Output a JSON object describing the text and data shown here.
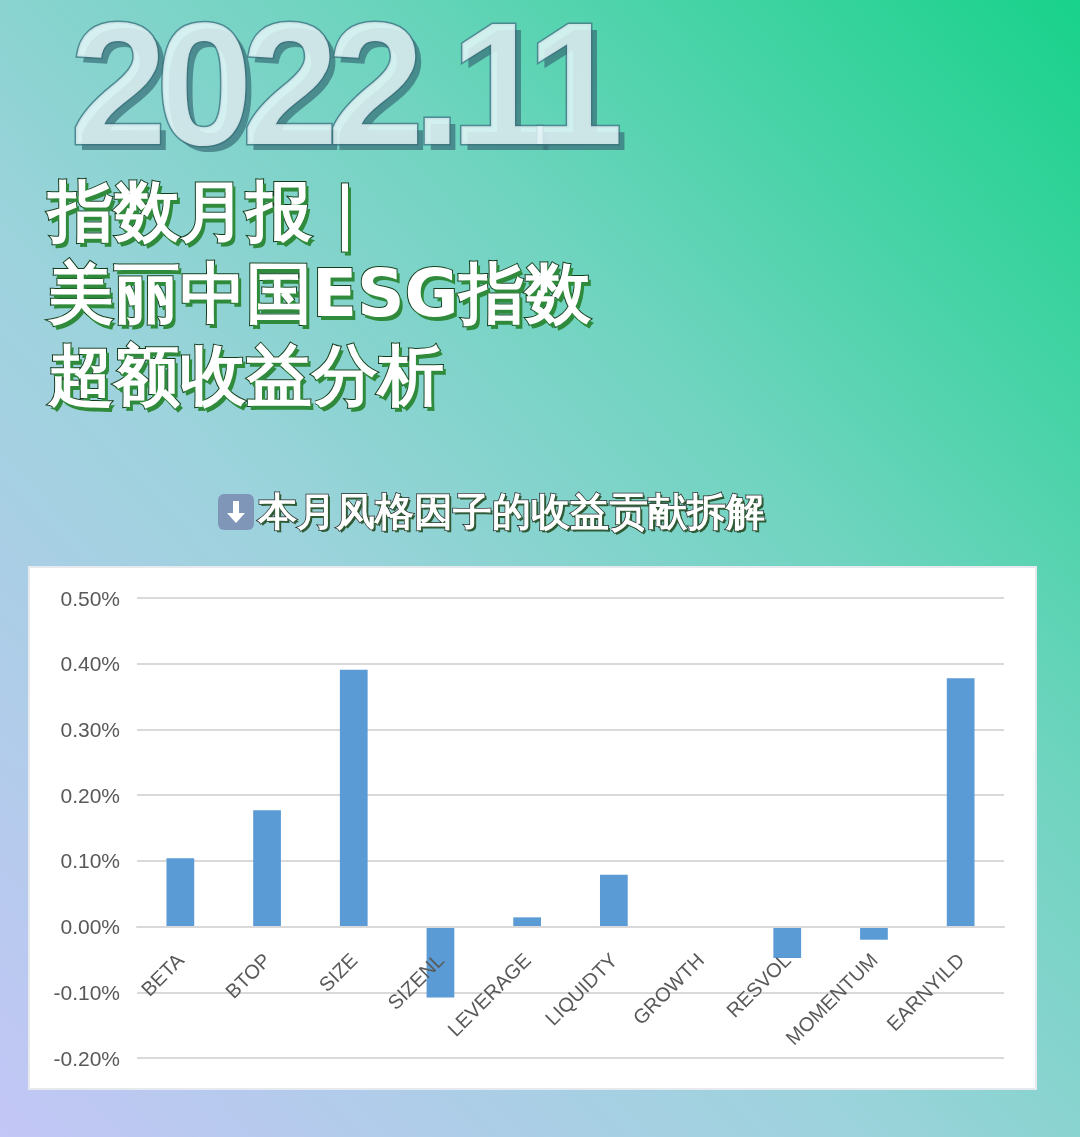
{
  "chart_data": {
    "type": "bar",
    "title": "指数月报｜美丽中国ESG指数超额收益分析",
    "subtitle": "本月风格因子的收益贡献拆解",
    "annotations": [
      "2022.11"
    ],
    "categories": [
      "BETA",
      "BTOP",
      "SIZE",
      "SIZENL",
      "LEVERAGE",
      "LIQUIDTY",
      "GROWTH",
      "RESVOL",
      "MOMENTUM",
      "EARNYILD"
    ],
    "values": [
      0.104,
      0.177,
      0.391,
      -0.108,
      0.014,
      0.079,
      0,
      -0.048,
      -0.02,
      0.378
    ],
    "color": "#5b9bd5",
    "ylim": [
      -0.2,
      0.5
    ],
    "yticks": [
      {
        "value": -0.2,
        "label": "-0.20%"
      },
      {
        "value": -0.1,
        "label": "-0.10%"
      },
      {
        "value": 0,
        "label": "0.00%"
      },
      {
        "value": 0.1,
        "label": "0.10%"
      },
      {
        "value": 0.2,
        "label": "0.20%"
      },
      {
        "value": 0.3,
        "label": "0.30%"
      },
      {
        "value": 0.4,
        "label": "0.40%"
      },
      {
        "value": 0.5,
        "label": "0.50%"
      }
    ],
    "grid": "y"
  }
}
